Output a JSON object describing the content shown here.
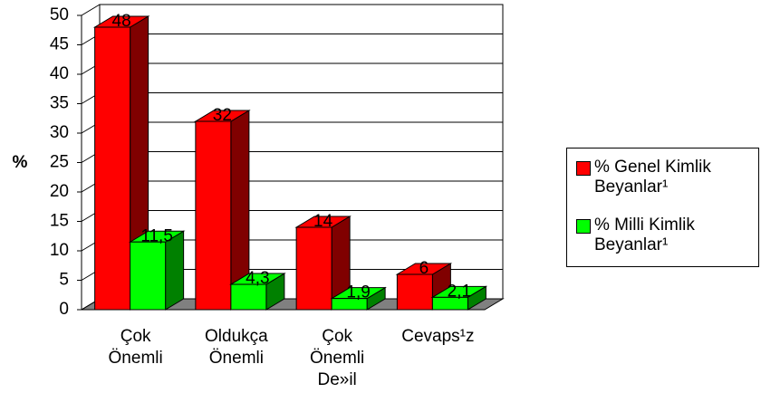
{
  "chart_data": {
    "type": "bar3d",
    "y_label": "%",
    "categories": [
      "Çok\nÖnemli",
      "Oldukça\nÖnemli",
      "Çok\nÖnemli\nDe»il",
      "Cevaps¹z"
    ],
    "series": [
      {
        "name": "% Genel Kimlik Beyanlar¹",
        "color": "#ff0000",
        "side": "#800000",
        "values": [
          48,
          32,
          14,
          6
        ],
        "value_labels": [
          "48",
          "32",
          "14",
          "6"
        ]
      },
      {
        "name": "% Milli Kimlik Beyanlar¹",
        "color": "#00ff00",
        "side": "#008000",
        "values": [
          11.5,
          4.3,
          1.9,
          2.1
        ],
        "value_labels": [
          "11,5",
          "4,3",
          "1,9",
          "2,1"
        ]
      }
    ],
    "ylim": [
      0,
      50
    ],
    "yticks": [
      0,
      5,
      10,
      15,
      20,
      25,
      30,
      35,
      40,
      45,
      50
    ],
    "grid": true,
    "legend": "right"
  }
}
